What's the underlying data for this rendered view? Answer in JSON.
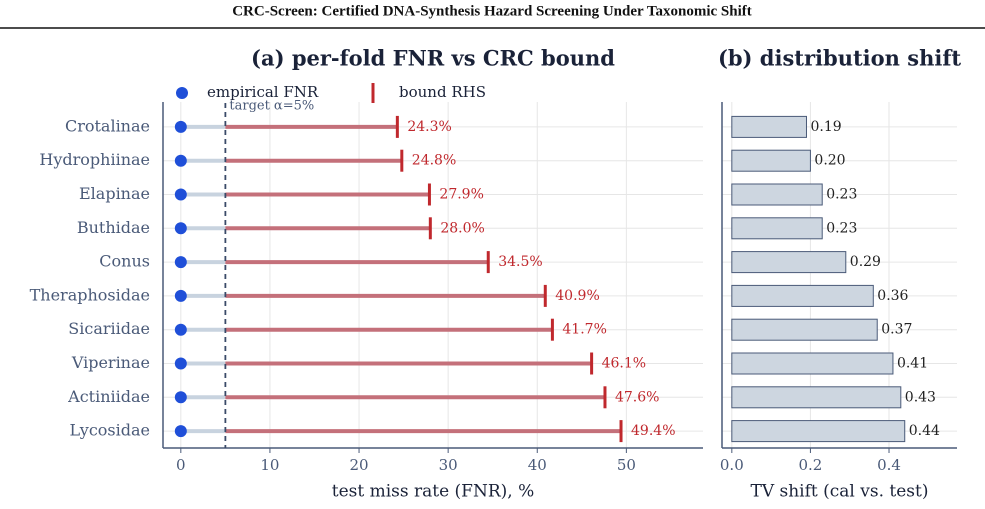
{
  "title": "CRC-Screen: Certified DNA-Synthesis Hazard Screening Under Taxonomic Shift",
  "chart_data": [
    {
      "type": "lollipop",
      "title": "(a) per-fold FNR vs CRC bound",
      "x_label": "test miss rate (FNR), %",
      "categories": [
        "Crotalinae",
        "Hydrophiinae",
        "Elapinae",
        "Buthidae",
        "Conus",
        "Theraphosidae",
        "Sicariidae",
        "Viperinae",
        "Actiniidae",
        "Lycosidae"
      ],
      "series": [
        {
          "name": "empirical FNR",
          "color": "#1f4fd8",
          "values": [
            0,
            0,
            0,
            0,
            0,
            0,
            0,
            0,
            0,
            0
          ]
        },
        {
          "name": "bound RHS",
          "color": "#c0282d",
          "values": [
            24.3,
            24.8,
            27.9,
            28.0,
            34.5,
            40.9,
            41.7,
            46.1,
            47.6,
            49.4
          ],
          "value_labels": [
            "24.3%",
            "24.8%",
            "27.9%",
            "28.0%",
            "34.5%",
            "40.9%",
            "41.7%",
            "46.1%",
            "47.6%",
            "49.4%"
          ]
        }
      ],
      "target": 5,
      "target_label": "target α=5%",
      "xlim": [
        -2,
        58.6
      ],
      "xticks": [
        0,
        10,
        20,
        30,
        40,
        50
      ],
      "grid": true
    },
    {
      "type": "bar",
      "orientation": "horizontal",
      "title": "(b) distribution shift",
      "x_label": "TV shift  (cal vs. test)",
      "values": [
        0.19,
        0.2,
        0.23,
        0.23,
        0.29,
        0.36,
        0.37,
        0.41,
        0.43,
        0.44
      ],
      "value_labels": [
        "0.19",
        "0.20",
        "0.23",
        "0.23",
        "0.29",
        "0.36",
        "0.37",
        "0.41",
        "0.43",
        "0.44"
      ],
      "color": "#cdd6e0",
      "edge_color": "#4a5a78",
      "xlim": [
        -0.025,
        0.573
      ],
      "xticks": [
        {
          "value": 0,
          "label": "0.0"
        },
        0.2,
        0.4
      ],
      "grid": true
    }
  ]
}
